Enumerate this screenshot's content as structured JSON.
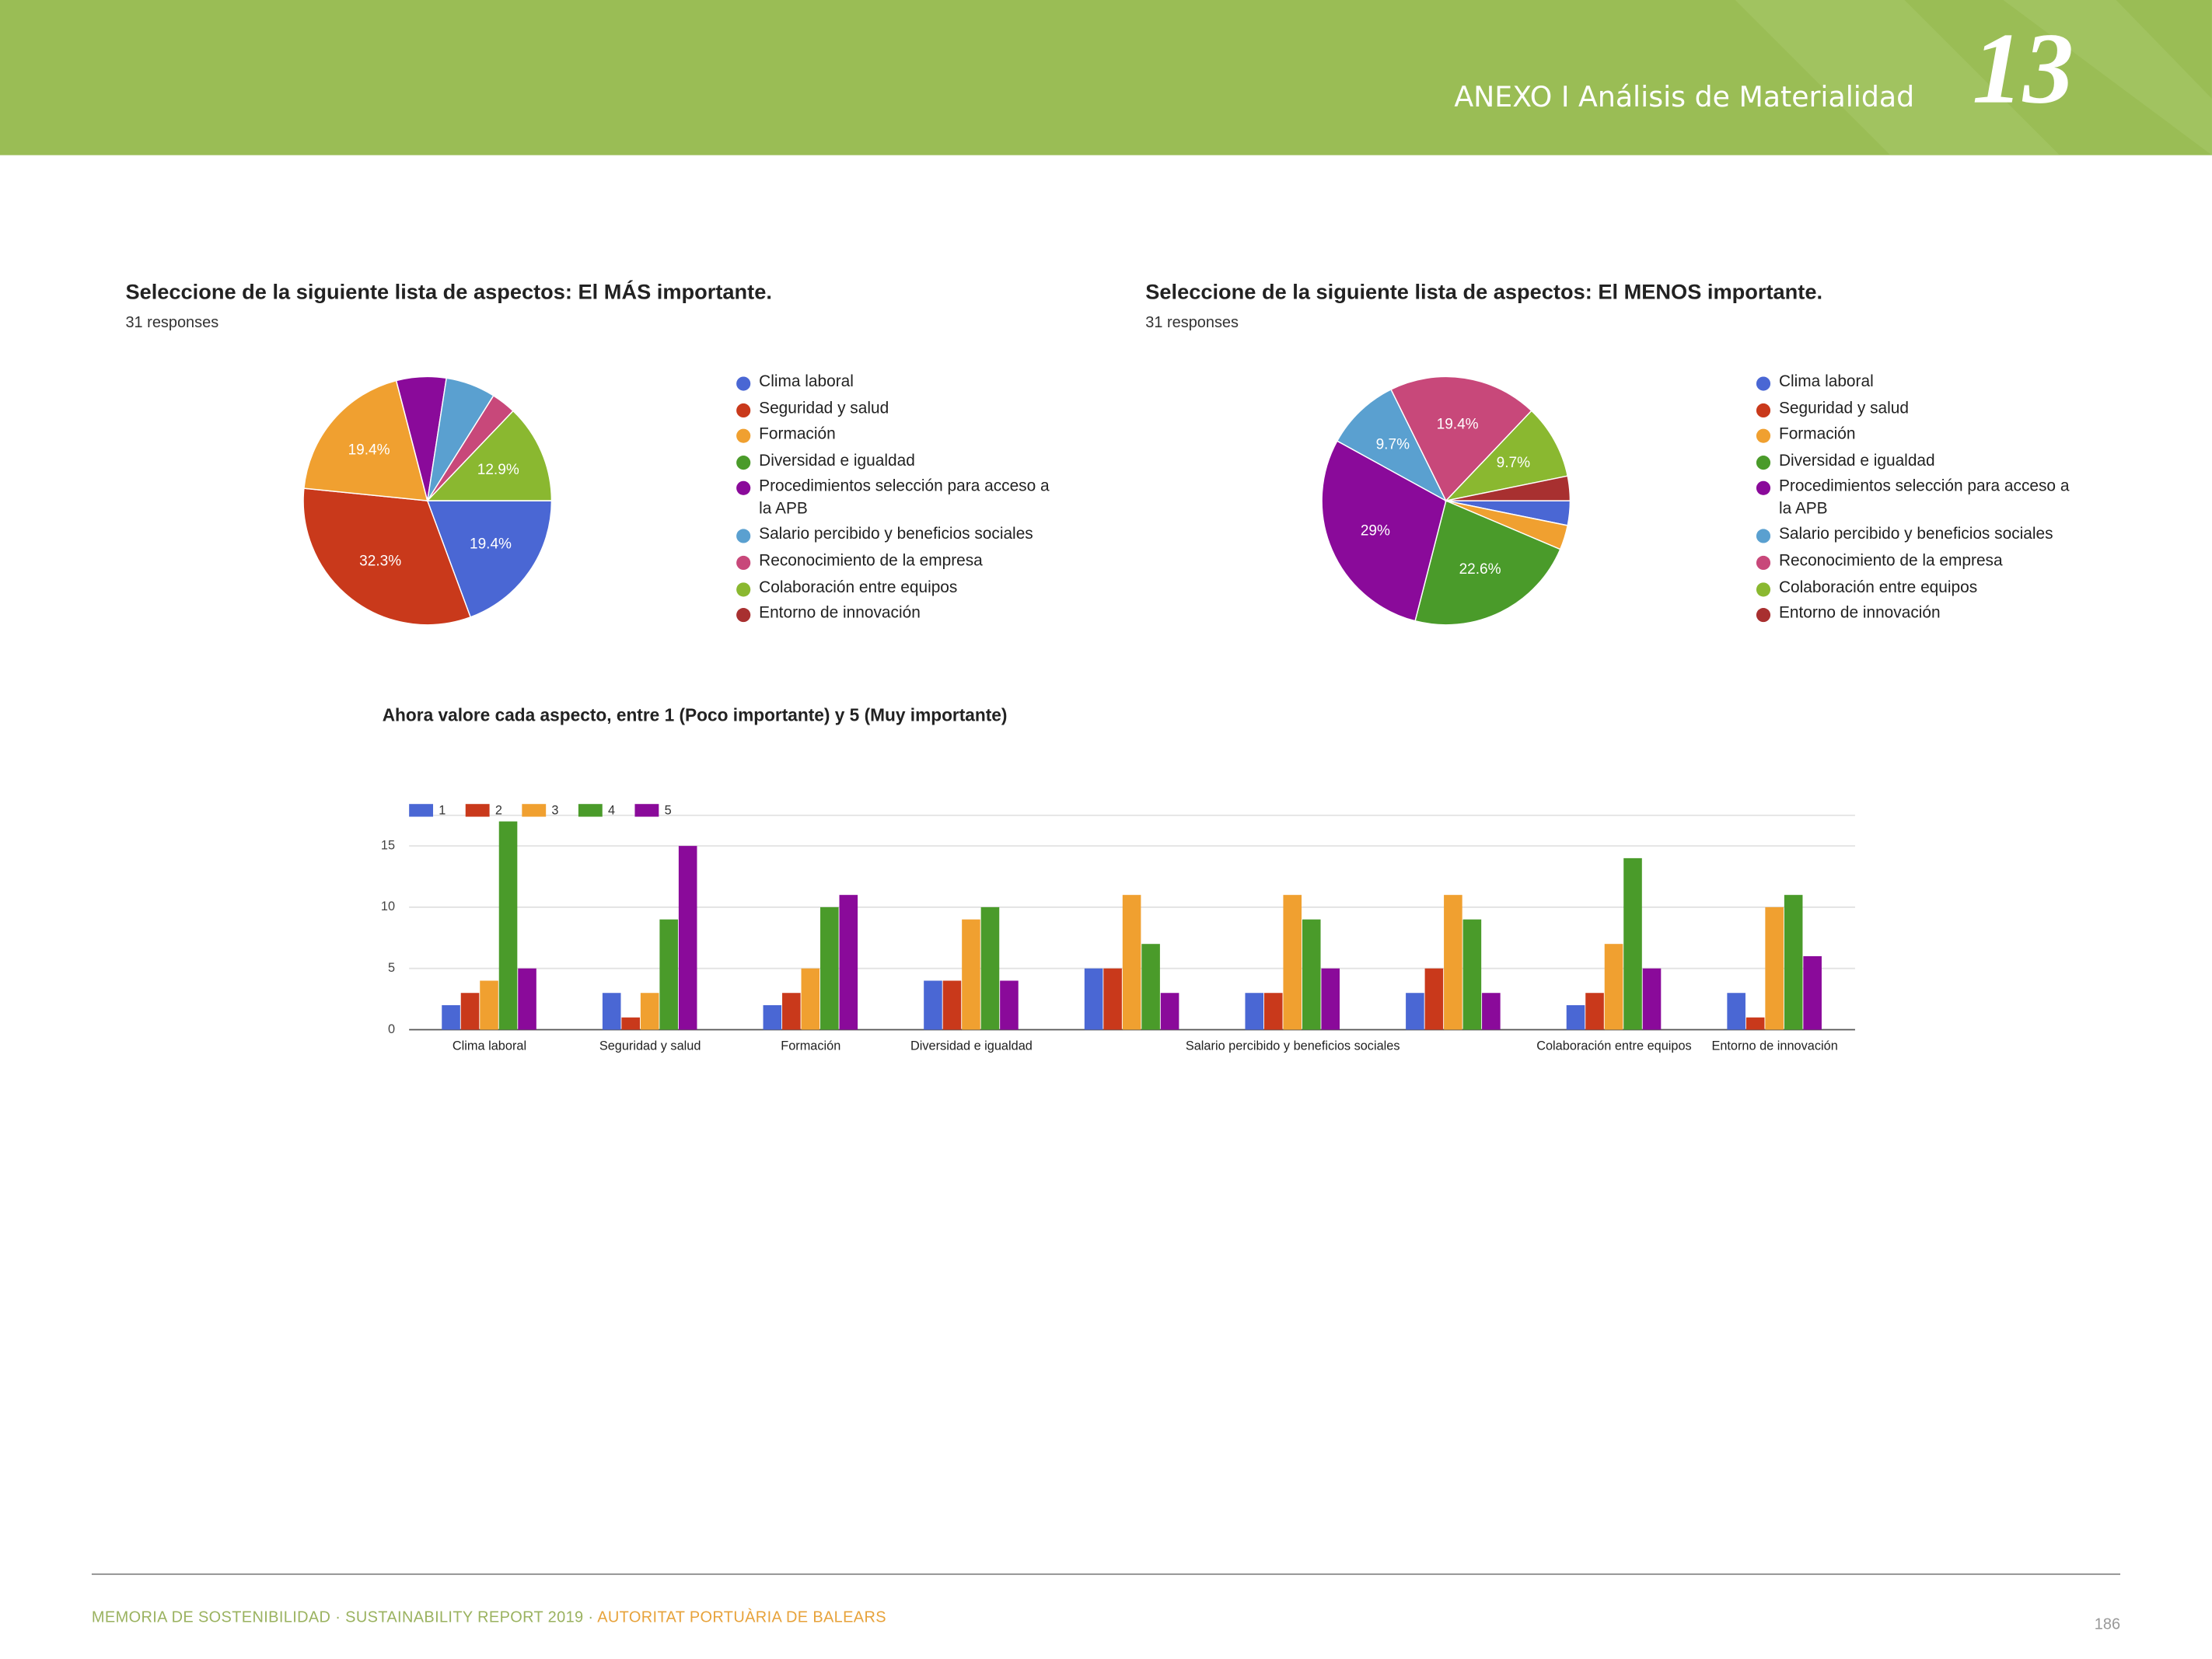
{
  "header": {
    "title": "ANEXO I Análisis de Materialidad",
    "number": "13"
  },
  "chart_data": [
    {
      "type": "pie",
      "title": "Seleccione de la siguiente lista de aspectos: El MÁS importante.",
      "subtitle": "31 responses",
      "categories": [
        "Clima laboral",
        "Seguridad y salud",
        "Formación",
        "Diversidad e igualdad",
        "Procedimientos selección para acceso a la APB",
        "Salario percibido y beneficios sociales",
        "Reconocimiento de la empresa",
        "Colaboración entre equipos",
        "Entorno de innovación"
      ],
      "values": [
        19.4,
        32.3,
        19.4,
        0,
        6.5,
        6.5,
        3.2,
        12.9,
        0
      ],
      "value_labels": [
        "19.4%",
        "32.3%",
        "19.4%",
        null,
        null,
        null,
        null,
        "12.9%",
        null
      ],
      "colors": [
        "#4a67d4",
        "#c9391b",
        "#f0a030",
        "#4a9b2a",
        "#8a0a9a",
        "#5aa0d0",
        "#c8487a",
        "#8ab830",
        "#a83030"
      ]
    },
    {
      "type": "pie",
      "title": "Seleccione de la siguiente lista de aspectos: El MENOS importante.",
      "subtitle": "31 responses",
      "categories": [
        "Clima laboral",
        "Seguridad y salud",
        "Formación",
        "Diversidad e igualdad",
        "Procedimientos selección para acceso a la APB",
        "Salario percibido y beneficios sociales",
        "Reconocimiento de la empresa",
        "Colaboración entre equipos",
        "Entorno de innovación"
      ],
      "values": [
        3.2,
        0,
        3.2,
        22.6,
        29,
        9.7,
        19.4,
        9.7,
        3.2
      ],
      "value_labels": [
        null,
        null,
        null,
        "22.6%",
        "29%",
        "9.7%",
        "19.4%",
        "9.7%",
        null
      ],
      "colors": [
        "#4a67d4",
        "#c9391b",
        "#f0a030",
        "#4a9b2a",
        "#8a0a9a",
        "#5aa0d0",
        "#c8487a",
        "#8ab830",
        "#a83030"
      ]
    },
    {
      "type": "bar",
      "title": "Ahora valore cada aspecto, entre 1 (Poco importante) y 5 (Muy importante)",
      "categories": [
        "Clima laboral",
        "Seguridad y salud",
        "Formación",
        "Diversidad e igualdad",
        null,
        "Salario percibido y beneficios sociales",
        null,
        "Colaboración entre equipos",
        "Entorno de innovación"
      ],
      "series": [
        {
          "name": "1",
          "color": "#4a67d4",
          "values": [
            2,
            3,
            2,
            4,
            5,
            3,
            3,
            2,
            3
          ]
        },
        {
          "name": "2",
          "color": "#c9391b",
          "values": [
            3,
            1,
            3,
            4,
            5,
            3,
            5,
            3,
            1
          ]
        },
        {
          "name": "3",
          "color": "#f0a030",
          "values": [
            4,
            3,
            5,
            9,
            11,
            11,
            11,
            7,
            10
          ]
        },
        {
          "name": "4",
          "color": "#4a9b2a",
          "values": [
            17,
            9,
            10,
            10,
            7,
            9,
            9,
            14,
            11
          ]
        },
        {
          "name": "5",
          "color": "#8a0a9a",
          "values": [
            5,
            15,
            11,
            4,
            3,
            5,
            3,
            5,
            6
          ]
        }
      ],
      "ylim": [
        0,
        17.5
      ],
      "yticks": [
        0,
        5,
        10,
        15
      ],
      "grid": true,
      "legend": "top-left"
    }
  ],
  "footer": {
    "text": "MEMORIA DE SOSTENIBILIDAD · SUSTAINABILITY REPORT 2019 · ",
    "org": "AUTORITAT PORTUÀRIA DE BALEARS",
    "page": "186"
  }
}
